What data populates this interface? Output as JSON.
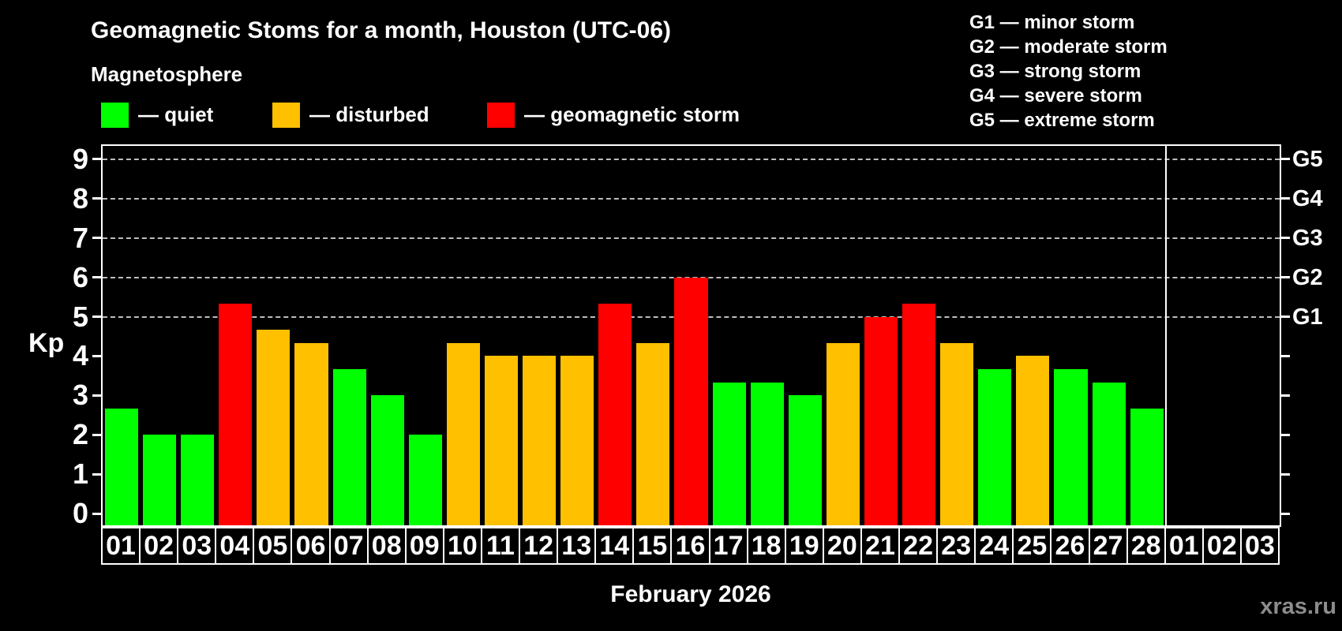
{
  "title": "Geomagnetic Stoms for a month, Houston (UTC-06)",
  "subtitle": "Magnetosphere",
  "legend": {
    "items": [
      {
        "label": "— quiet",
        "status": "quiet",
        "color": "#00ff00"
      },
      {
        "label": "— disturbed",
        "status": "disturbed",
        "color": "#ffc000"
      },
      {
        "label": "— geomagnetic storm",
        "status": "storm",
        "color": "#ff0000"
      }
    ]
  },
  "g_scale_legend": [
    "G1 — minor storm",
    "G2 — moderate storm",
    "G3 — strong storm",
    "G4 — severe storm",
    "G5 — extreme storm"
  ],
  "watermark": "xras.ru",
  "chart_data": {
    "type": "bar",
    "title": "Geomagnetic Stoms for a month, Houston (UTC-06)",
    "xlabel": "February 2026",
    "ylabel": "Kp",
    "ylim": [
      -0.3,
      9.4
    ],
    "yticks": [
      0,
      1,
      2,
      3,
      4,
      5,
      6,
      7,
      8,
      9
    ],
    "grid": "dashed horizontal lines at Kp 5,6,7,8,9",
    "legend_position": "top-left",
    "status_colors": {
      "quiet": "#00ff00",
      "disturbed": "#ffc000",
      "storm": "#ff0000"
    },
    "g_levels": [
      {
        "label": "G1",
        "kp": 5
      },
      {
        "label": "G2",
        "kp": 6
      },
      {
        "label": "G3",
        "kp": 7
      },
      {
        "label": "G4",
        "kp": 8
      },
      {
        "label": "G5",
        "kp": 9
      }
    ],
    "february_days": 28,
    "days": [
      {
        "label": "01",
        "kp": 2.67,
        "status": "quiet"
      },
      {
        "label": "02",
        "kp": 2,
        "status": "quiet"
      },
      {
        "label": "03",
        "kp": 2,
        "status": "quiet"
      },
      {
        "label": "04",
        "kp": 5.33,
        "status": "storm"
      },
      {
        "label": "05",
        "kp": 4.67,
        "status": "disturbed"
      },
      {
        "label": "06",
        "kp": 4.33,
        "status": "disturbed"
      },
      {
        "label": "07",
        "kp": 3.67,
        "status": "quiet"
      },
      {
        "label": "08",
        "kp": 3,
        "status": "quiet"
      },
      {
        "label": "09",
        "kp": 2,
        "status": "quiet"
      },
      {
        "label": "10",
        "kp": 4.33,
        "status": "disturbed"
      },
      {
        "label": "11",
        "kp": 4,
        "status": "disturbed"
      },
      {
        "label": "12",
        "kp": 4,
        "status": "disturbed"
      },
      {
        "label": "13",
        "kp": 4,
        "status": "disturbed"
      },
      {
        "label": "14",
        "kp": 5.33,
        "status": "storm"
      },
      {
        "label": "15",
        "kp": 4.33,
        "status": "disturbed"
      },
      {
        "label": "16",
        "kp": 6,
        "status": "storm"
      },
      {
        "label": "17",
        "kp": 3.33,
        "status": "quiet"
      },
      {
        "label": "18",
        "kp": 3.33,
        "status": "quiet"
      },
      {
        "label": "19",
        "kp": 3,
        "status": "quiet"
      },
      {
        "label": "20",
        "kp": 4.33,
        "status": "disturbed"
      },
      {
        "label": "21",
        "kp": 5,
        "status": "storm"
      },
      {
        "label": "22",
        "kp": 5.33,
        "status": "storm"
      },
      {
        "label": "23",
        "kp": 4.33,
        "status": "disturbed"
      },
      {
        "label": "24",
        "kp": 3.67,
        "status": "quiet"
      },
      {
        "label": "25",
        "kp": 4,
        "status": "disturbed"
      },
      {
        "label": "26",
        "kp": 3.67,
        "status": "quiet"
      },
      {
        "label": "27",
        "kp": 3.33,
        "status": "quiet"
      },
      {
        "label": "28",
        "kp": 2.67,
        "status": "quiet"
      },
      {
        "label": "01",
        "kp": null,
        "status": null
      },
      {
        "label": "02",
        "kp": null,
        "status": null
      },
      {
        "label": "03",
        "kp": null,
        "status": null
      }
    ]
  }
}
